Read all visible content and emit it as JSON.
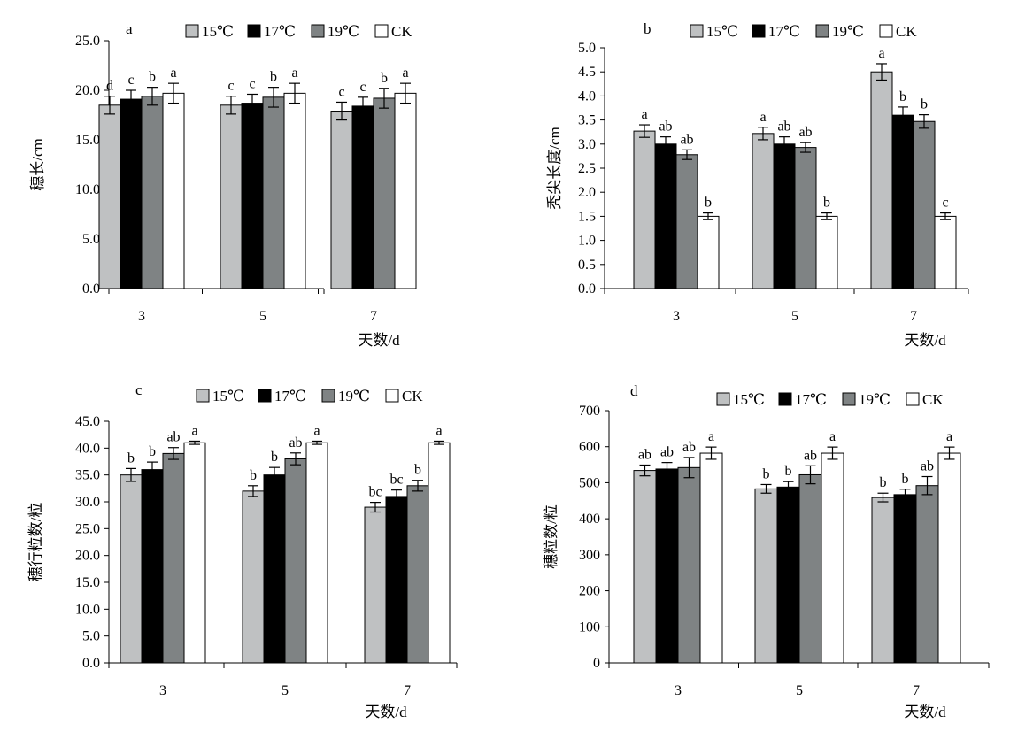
{
  "colors": {
    "15C": "#bfc1c2",
    "17C": "#000000",
    "19C": "#7f8384",
    "CK": "#ffffff",
    "stroke": "#000000"
  },
  "legend": [
    "15℃",
    "17℃",
    "19℃",
    "CK"
  ],
  "chart_data": [
    {
      "panel": "a",
      "type": "bar",
      "ylabel": "穗长/cm",
      "xlabel": "",
      "categories": [
        "3",
        "5",
        "7"
      ],
      "ylim": [
        0,
        25
      ],
      "yticks": [
        "0.0",
        "5.0",
        "10.0",
        "15.0",
        "20.0",
        "25.0"
      ],
      "series": [
        {
          "name": "15℃",
          "values": [
            18.5,
            18.5,
            17.9
          ],
          "errors": [
            0.9,
            0.9,
            0.9
          ],
          "sig": [
            "d",
            "c",
            "c"
          ]
        },
        {
          "name": "17℃",
          "values": [
            19.1,
            18.7,
            18.4
          ],
          "errors": [
            0.9,
            0.9,
            0.9
          ],
          "sig": [
            "c",
            "c",
            "c"
          ]
        },
        {
          "name": "19℃",
          "values": [
            19.4,
            19.3,
            19.2
          ],
          "errors": [
            0.9,
            1.0,
            1.0
          ],
          "sig": [
            "b",
            "b",
            "b"
          ]
        },
        {
          "name": "CK",
          "values": [
            19.7,
            19.7,
            19.7
          ],
          "errors": [
            1.0,
            1.0,
            1.0
          ],
          "sig": [
            "a",
            "a",
            "a"
          ]
        }
      ]
    },
    {
      "panel": "b",
      "type": "bar",
      "ylabel": "秃尖长度/cm",
      "xlabel": "天数/d",
      "categories": [
        "3",
        "5",
        "7"
      ],
      "ylim": [
        0,
        5
      ],
      "yticks": [
        "0.0",
        "0.5",
        "1.0",
        "1.5",
        "2.0",
        "2.5",
        "3.0",
        "3.5",
        "4.0",
        "4.5",
        "5.0"
      ],
      "series": [
        {
          "name": "15℃",
          "values": [
            3.27,
            3.22,
            4.5
          ],
          "errors": [
            0.13,
            0.13,
            0.17
          ],
          "sig": [
            "a",
            "a",
            "a"
          ]
        },
        {
          "name": "17℃",
          "values": [
            3.0,
            3.0,
            3.6
          ],
          "errors": [
            0.15,
            0.15,
            0.17
          ],
          "sig": [
            "ab",
            "ab",
            "b"
          ]
        },
        {
          "name": "19℃",
          "values": [
            2.78,
            2.93,
            3.47
          ],
          "errors": [
            0.1,
            0.1,
            0.14
          ],
          "sig": [
            "ab",
            "ab",
            "b"
          ]
        },
        {
          "name": "CK",
          "values": [
            1.5,
            1.5,
            1.5
          ],
          "errors": [
            0.07,
            0.07,
            0.07
          ],
          "sig": [
            "b",
            "b",
            "c"
          ]
        }
      ]
    },
    {
      "panel": "c",
      "type": "bar",
      "ylabel": "穗行粒数/粒",
      "xlabel": "天数/d",
      "categories": [
        "3",
        "5",
        "7"
      ],
      "ylim": [
        0,
        45
      ],
      "yticks": [
        "0.0",
        "5.0",
        "10.0",
        "15.0",
        "20.0",
        "25.0",
        "30.0",
        "35.0",
        "40.0",
        "45.0"
      ],
      "series": [
        {
          "name": "15℃",
          "values": [
            35.0,
            32.0,
            29.0
          ],
          "errors": [
            1.2,
            1.0,
            0.9
          ],
          "sig": [
            "b",
            "b",
            "bc"
          ]
        },
        {
          "name": "17℃",
          "values": [
            36.0,
            35.0,
            31.0
          ],
          "errors": [
            1.4,
            1.4,
            1.2
          ],
          "sig": [
            "b",
            "b",
            "bc"
          ]
        },
        {
          "name": "19℃",
          "values": [
            39.0,
            38.0,
            33.0
          ],
          "errors": [
            1.1,
            1.1,
            1.0
          ],
          "sig": [
            "ab",
            "ab",
            "b"
          ]
        },
        {
          "name": "CK",
          "values": [
            41.0,
            41.0,
            41.0
          ],
          "errors": [
            0.3,
            0.3,
            0.3
          ],
          "sig": [
            "a",
            "a",
            "a"
          ]
        }
      ]
    },
    {
      "panel": "d",
      "type": "bar",
      "ylabel": "穗粒数/粒",
      "xlabel": "天数/d",
      "categories": [
        "3",
        "5",
        "7"
      ],
      "ylim": [
        0,
        700
      ],
      "yticks": [
        "0",
        "100",
        "200",
        "300",
        "400",
        "500",
        "600",
        "700"
      ],
      "series": [
        {
          "name": "15℃",
          "values": [
            534,
            483,
            459
          ],
          "errors": [
            15,
            12,
            12
          ],
          "sig": [
            "ab",
            "b",
            "b"
          ]
        },
        {
          "name": "17℃",
          "values": [
            538,
            488,
            467
          ],
          "errors": [
            18,
            15,
            15
          ],
          "sig": [
            "ab",
            "b",
            "b"
          ]
        },
        {
          "name": "19℃",
          "values": [
            542,
            522,
            492
          ],
          "errors": [
            28,
            25,
            25
          ],
          "sig": [
            "ab",
            "ab",
            "ab"
          ]
        },
        {
          "name": "CK",
          "values": [
            582,
            582,
            582
          ],
          "errors": [
            17,
            17,
            17
          ],
          "sig": [
            "a",
            "a",
            "a"
          ]
        }
      ]
    }
  ]
}
